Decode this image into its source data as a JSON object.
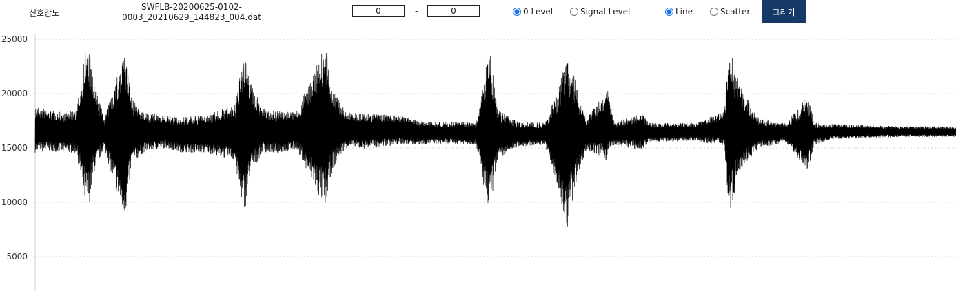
{
  "toolbar": {
    "title": "신호강도",
    "filename_line1": "SWFLB-20200625-0102-",
    "filename_line2": "0003_20210629_144823_004.dat",
    "range_start": "0",
    "range_separator": "-",
    "range_end": "0",
    "level_options": [
      {
        "label": "0 Level",
        "checked": true
      },
      {
        "label": "Signal Level",
        "checked": false
      }
    ],
    "plot_mode_options": [
      {
        "label": "Line",
        "checked": true
      },
      {
        "label": "Scatter",
        "checked": false
      }
    ],
    "draw_button_label": "그리기",
    "draw_button_color": "#163a67"
  },
  "chart_data": {
    "type": "line",
    "title": "",
    "xlabel": "",
    "ylabel": "",
    "ylim": [
      2000,
      25500
    ],
    "yticks": [
      5000,
      10000,
      15000,
      20000,
      25000
    ],
    "grid": true,
    "line_color": "#000000",
    "series": [
      {
        "x": [
          0,
          20,
          40,
          60,
          73,
          78,
          85,
          100,
          128,
          132,
          140,
          160,
          190,
          210,
          250,
          290,
          300,
          305,
          312,
          330,
          350,
          380,
          418,
          422,
          430,
          450,
          470,
          500,
          530,
          560,
          600,
          640,
          657,
          661,
          670,
          700,
          740,
          773,
          775,
          780,
          788,
          800,
          830,
          832,
          840,
          880,
          890,
          920,
          960,
          1000,
          1006,
          1012,
          1020,
          1050,
          1090,
          1119,
          1123,
          1130,
          1160,
          1200,
          1250,
          1300,
          1336
        ],
        "min": [
          14500,
          14700,
          14600,
          14500,
          9500,
          9600,
          12600,
          15000,
          8700,
          9200,
          13500,
          14700,
          15000,
          14600,
          14500,
          13800,
          9100,
          9400,
          12500,
          14600,
          14500,
          14800,
          9500,
          9800,
          12800,
          15000,
          14900,
          15100,
          15300,
          15300,
          15400,
          15300,
          9100,
          9600,
          13800,
          15100,
          15300,
          7400,
          9800,
          10100,
          12800,
          14800,
          13800,
          14300,
          15300,
          14800,
          15500,
          15600,
          15600,
          15200,
          9300,
          9700,
          12800,
          15000,
          15500,
          12800,
          13300,
          15300,
          15800,
          15900,
          16000,
          16000,
          16000
        ],
        "max": [
          18800,
          18500,
          18300,
          18500,
          24300,
          24000,
          21000,
          17800,
          23500,
          23200,
          19500,
          18200,
          18000,
          17800,
          18100,
          19000,
          23700,
          23400,
          21200,
          18600,
          18400,
          18400,
          24400,
          24000,
          20800,
          18300,
          18200,
          18100,
          18000,
          17500,
          17400,
          17400,
          23600,
          23400,
          18600,
          17400,
          17300,
          23300,
          22800,
          22200,
          19800,
          17700,
          20400,
          19800,
          17400,
          18200,
          17300,
          17300,
          17300,
          18500,
          23700,
          23300,
          21000,
          17700,
          17300,
          19800,
          19400,
          17300,
          17200,
          17100,
          17000,
          17000,
          17000
        ]
      }
    ]
  }
}
